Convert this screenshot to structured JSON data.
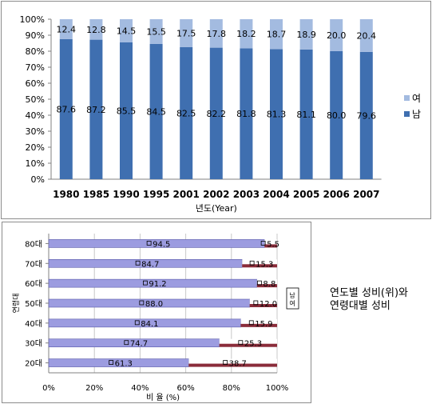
{
  "colors": {
    "male": "#3f6fb0",
    "female": "#a3bbe0",
    "male_bar2": "#9c9ce0",
    "female_bar2": "#8a2c3a",
    "grid": "#c8c8c8",
    "axis": "#808080"
  },
  "caption": {
    "line1": "연도별 성비(위)와",
    "line2": "연령대별 성비"
  },
  "chart_data": [
    {
      "type": "bar",
      "stacked": true,
      "percent": true,
      "categories": [
        "1980",
        "1985",
        "1990",
        "1995",
        "2001",
        "2002",
        "2003",
        "2004",
        "2005",
        "2006",
        "2007"
      ],
      "series": [
        {
          "name": "남",
          "values": [
            87.6,
            87.2,
            85.5,
            84.5,
            82.5,
            82.2,
            81.8,
            81.3,
            81.1,
            80.0,
            79.6
          ]
        },
        {
          "name": "여",
          "values": [
            12.4,
            12.8,
            14.5,
            15.5,
            17.5,
            17.8,
            18.2,
            18.7,
            18.9,
            20.0,
            20.4
          ]
        }
      ],
      "xlabel": "년도(Year)",
      "ylim": [
        0,
        100
      ],
      "yticks": [
        "0%",
        "10%",
        "20%",
        "30%",
        "40%",
        "50%",
        "60%",
        "70%",
        "80%",
        "90%",
        "100%"
      ],
      "legend": [
        "여",
        "남"
      ],
      "legend_position": "right",
      "grid": false
    },
    {
      "type": "bar",
      "orientation": "horizontal",
      "stacked": true,
      "percent": true,
      "categories": [
        "20대",
        "30대",
        "40대",
        "50대",
        "60대",
        "70대",
        "80대"
      ],
      "series": [
        {
          "name": "남",
          "values": [
            61.3,
            74.7,
            84.1,
            88.0,
            91.2,
            84.7,
            94.5
          ]
        },
        {
          "name": "여",
          "values": [
            38.7,
            25.3,
            15.9,
            12.0,
            8.8,
            15.3,
            5.5
          ]
        }
      ],
      "xlabel": "비 율 (%)",
      "ylabel": "연령대",
      "xlim": [
        0,
        100
      ],
      "xticks": [
        "0%",
        "20%",
        "40%",
        "60%",
        "80%",
        "100%"
      ],
      "legend": [
        "남",
        "여"
      ],
      "legend_position": "right",
      "grid": true
    }
  ]
}
